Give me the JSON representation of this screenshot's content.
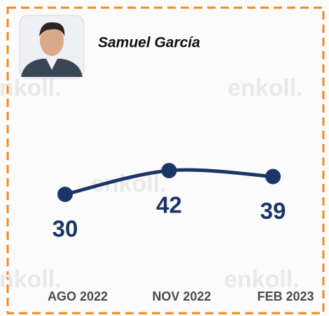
{
  "chart_data": {
    "type": "line",
    "title": "Samuel García",
    "watermark": "enkoll.",
    "categories": [
      "AGO 2022",
      "NOV 2022",
      "FEB 2023"
    ],
    "series": [
      {
        "name": "Samuel García",
        "color": "#1c3567",
        "values": [
          30,
          42,
          39
        ]
      }
    ],
    "ylim": [
      0,
      60
    ]
  }
}
